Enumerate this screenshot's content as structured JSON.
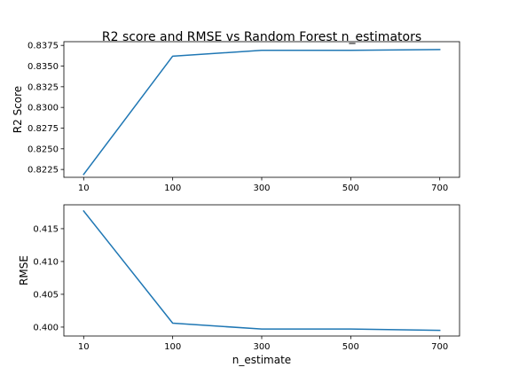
{
  "chart_data": [
    {
      "type": "line",
      "title": "R2 score and RMSE vs Random Forest n_estimators",
      "xlabel": "",
      "ylabel": "R2 Score",
      "categories": [
        "10",
        "100",
        "300",
        "500",
        "700"
      ],
      "series": [
        {
          "values": [
            0.8219,
            0.8362,
            0.8369,
            0.8369,
            0.837
          ],
          "color": "#1f77b4"
        }
      ],
      "ylim": [
        0.82155,
        0.83795
      ],
      "yticks": [
        0.8225,
        0.825,
        0.8275,
        0.83,
        0.8325,
        0.835,
        0.8375
      ],
      "ytick_labels": [
        "0.8225",
        "0.8250",
        "0.8275",
        "0.8300",
        "0.8325",
        "0.8350",
        "0.8375"
      ],
      "grid": false,
      "legend": "none"
    },
    {
      "type": "line",
      "title": "",
      "xlabel": "n_estimate",
      "ylabel": "RMSE",
      "categories": [
        "10",
        "100",
        "300",
        "500",
        "700"
      ],
      "series": [
        {
          "values": [
            0.4177,
            0.4006,
            0.3997,
            0.3997,
            0.3995
          ],
          "color": "#1f77b4"
        }
      ],
      "ylim": [
        0.39864,
        0.41864
      ],
      "yticks": [
        0.4,
        0.405,
        0.41,
        0.415
      ],
      "ytick_labels": [
        "0.400",
        "0.405",
        "0.410",
        "0.415"
      ],
      "grid": false,
      "legend": "none"
    }
  ]
}
